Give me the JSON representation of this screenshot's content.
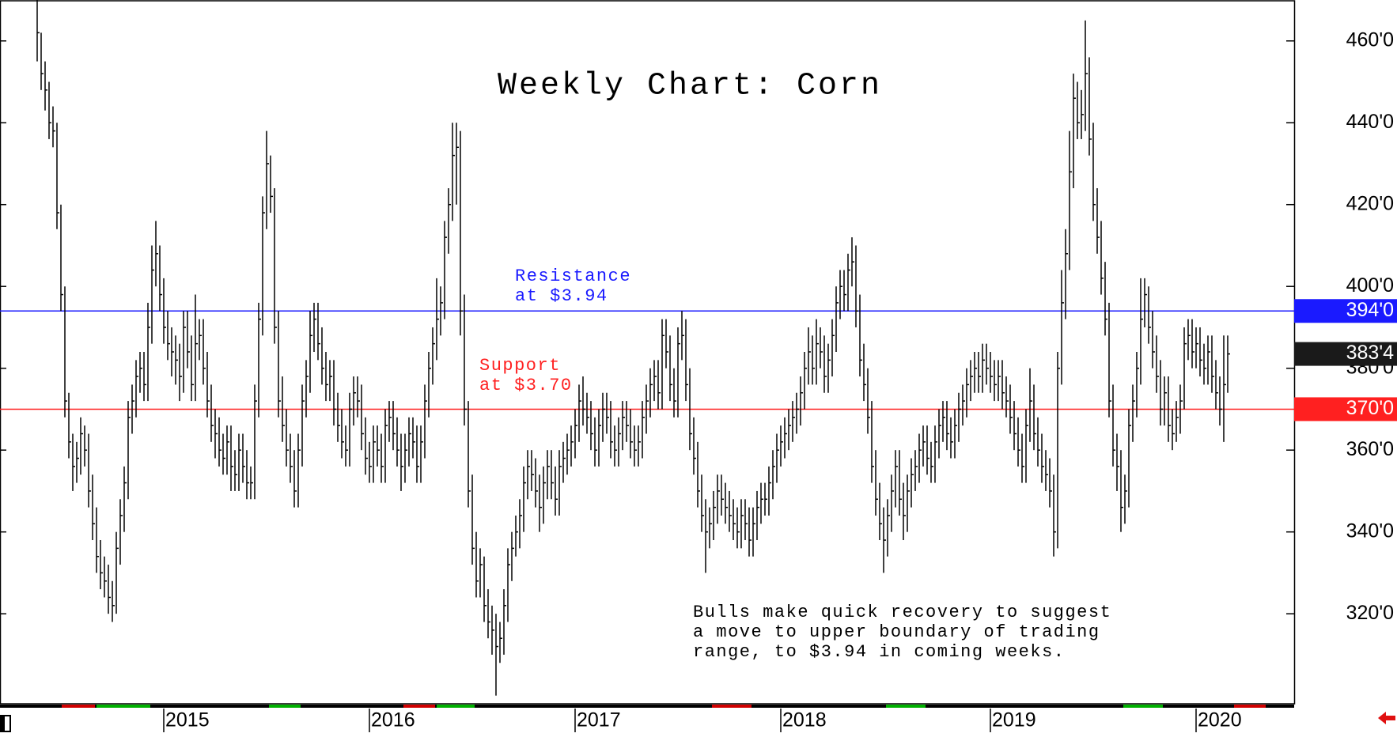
{
  "chart_data": {
    "type": "ohlc",
    "title": "Weekly Chart: Corn",
    "ylim": [
      298,
      470
    ],
    "yticks": [
      {
        "value": 320,
        "label": "320'0"
      },
      {
        "value": 340,
        "label": "340'0"
      },
      {
        "value": 360,
        "label": "360'0"
      },
      {
        "value": 380,
        "label": "380'0"
      },
      {
        "value": 400,
        "label": "400'0"
      },
      {
        "value": 420,
        "label": "420'0"
      },
      {
        "value": 440,
        "label": "440'0"
      },
      {
        "value": 460,
        "label": "460'0"
      }
    ],
    "xticks": [
      {
        "value": 32,
        "label": "2015"
      },
      {
        "value": 84,
        "label": "2016"
      },
      {
        "value": 136,
        "label": "2017"
      },
      {
        "value": 188,
        "label": "2018"
      },
      {
        "value": 241,
        "label": "2019"
      },
      {
        "value": 293,
        "label": "2020"
      }
    ],
    "levels": [
      {
        "value": 394,
        "label": "394'0",
        "color": "#1a1aff"
      },
      {
        "value": 370,
        "label": "370'0",
        "color": "#ff2020"
      }
    ],
    "last": {
      "value": 383.5,
      "label": "383'4",
      "color": "#1a1a1a"
    },
    "annotations": [
      {
        "lines": [
          "Resistance",
          "at $3.94"
        ],
        "color": "#1a1aff"
      },
      {
        "lines": [
          "Support",
          "at $3.70"
        ],
        "color": "#ff2020"
      },
      {
        "lines": [
          "Bulls make quick recovery to suggest",
          "a move to upper boundary of trading",
          "range, to $3.94 in coming weeks."
        ],
        "color": "#000000"
      }
    ],
    "color": "#000000",
    "high": [
      470,
      462,
      455,
      450,
      444,
      440,
      420,
      400,
      374,
      364,
      362,
      368,
      366,
      364,
      354,
      346,
      338,
      334,
      332,
      328,
      340,
      348,
      356,
      372,
      376,
      382,
      384,
      384,
      396,
      410,
      416,
      410,
      402,
      394,
      390,
      388,
      386,
      394,
      394,
      388,
      398,
      392,
      392,
      384,
      376,
      370,
      368,
      364,
      366,
      366,
      360,
      364,
      364,
      360,
      356,
      376,
      396,
      422,
      438,
      432,
      424,
      394,
      378,
      370,
      364,
      360,
      364,
      376,
      382,
      394,
      396,
      396,
      390,
      384,
      382,
      382,
      374,
      370,
      366,
      374,
      378,
      378,
      376,
      368,
      362,
      366,
      366,
      364,
      370,
      372,
      372,
      368,
      364,
      364,
      368,
      368,
      366,
      366,
      376,
      384,
      390,
      402,
      400,
      416,
      424,
      440,
      440,
      438,
      398,
      372,
      354,
      340,
      336,
      334,
      326,
      322,
      320,
      318,
      326,
      336,
      340,
      344,
      348,
      356,
      360,
      360,
      358,
      354,
      356,
      360,
      360,
      356,
      360,
      362,
      364,
      366,
      370,
      376,
      378,
      374,
      372,
      368,
      370,
      374,
      374,
      372,
      366,
      368,
      372,
      372,
      370,
      366,
      366,
      372,
      376,
      380,
      382,
      382,
      392,
      392,
      388,
      380,
      390,
      394,
      392,
      380,
      368,
      362,
      354,
      348,
      346,
      350,
      354,
      354,
      352,
      350,
      348,
      346,
      348,
      348,
      346,
      346,
      350,
      352,
      352,
      356,
      360,
      364,
      366,
      368,
      370,
      372,
      374,
      378,
      384,
      390,
      388,
      392,
      390,
      388,
      386,
      392,
      400,
      404,
      404,
      408,
      412,
      410,
      398,
      386,
      380,
      372,
      360,
      352,
      346,
      348,
      354,
      360,
      360,
      352,
      354,
      358,
      360,
      364,
      366,
      366,
      362,
      366,
      370,
      372,
      372,
      368,
      370,
      374,
      376,
      380,
      382,
      384,
      384,
      386,
      386,
      384,
      382,
      382,
      382,
      378,
      376,
      372,
      368,
      364,
      370,
      380,
      376,
      368,
      364,
      360,
      358,
      354,
      384,
      404,
      414,
      438,
      452,
      450,
      448,
      465,
      456,
      440,
      424,
      416,
      406,
      396,
      376,
      364,
      360,
      354,
      370,
      376,
      384,
      402,
      402,
      400,
      394,
      388,
      382,
      378,
      378,
      370,
      372,
      376,
      390,
      392,
      392,
      390,
      390,
      386,
      388,
      388,
      382,
      378,
      388,
      388
    ],
    "low": [
      455,
      448,
      443,
      436,
      434,
      414,
      394,
      368,
      358,
      350,
      352,
      354,
      356,
      346,
      338,
      330,
      326,
      324,
      320,
      318,
      320,
      332,
      340,
      348,
      364,
      368,
      374,
      372,
      372,
      386,
      400,
      394,
      386,
      382,
      378,
      376,
      372,
      374,
      380,
      372,
      372,
      382,
      376,
      368,
      362,
      358,
      356,
      354,
      354,
      350,
      350,
      350,
      352,
      348,
      348,
      348,
      368,
      388,
      414,
      418,
      386,
      368,
      362,
      356,
      352,
      346,
      346,
      356,
      368,
      374,
      384,
      382,
      376,
      372,
      372,
      366,
      362,
      358,
      356,
      356,
      366,
      368,
      360,
      354,
      352,
      352,
      356,
      352,
      352,
      362,
      360,
      356,
      350,
      352,
      356,
      358,
      352,
      352,
      358,
      368,
      376,
      382,
      388,
      392,
      408,
      416,
      420,
      388,
      366,
      346,
      332,
      324,
      324,
      318,
      314,
      310,
      300,
      308,
      310,
      318,
      328,
      334,
      336,
      340,
      348,
      350,
      346,
      340,
      342,
      348,
      348,
      344,
      344,
      352,
      354,
      356,
      358,
      362,
      366,
      364,
      360,
      356,
      356,
      362,
      364,
      358,
      356,
      356,
      360,
      362,
      358,
      356,
      356,
      358,
      364,
      368,
      372,
      370,
      370,
      380,
      372,
      368,
      368,
      382,
      372,
      360,
      354,
      346,
      340,
      330,
      336,
      338,
      342,
      344,
      342,
      340,
      338,
      336,
      336,
      338,
      334,
      334,
      338,
      342,
      344,
      344,
      348,
      352,
      356,
      358,
      360,
      362,
      364,
      366,
      370,
      376,
      376,
      376,
      380,
      374,
      374,
      378,
      384,
      392,
      394,
      394,
      400,
      390,
      378,
      372,
      364,
      352,
      344,
      338,
      330,
      334,
      340,
      346,
      344,
      338,
      340,
      346,
      350,
      352,
      356,
      354,
      352,
      352,
      358,
      362,
      360,
      358,
      358,
      362,
      366,
      368,
      372,
      374,
      374,
      374,
      376,
      374,
      372,
      372,
      370,
      368,
      364,
      360,
      356,
      352,
      352,
      362,
      360,
      356,
      352,
      350,
      346,
      334,
      336,
      376,
      392,
      404,
      424,
      436,
      436,
      438,
      432,
      416,
      408,
      398,
      388,
      368,
      356,
      350,
      340,
      342,
      346,
      362,
      368,
      376,
      390,
      386,
      380,
      374,
      366,
      366,
      362,
      360,
      362,
      364,
      370,
      382,
      380,
      380,
      378,
      376,
      376,
      374,
      370,
      366,
      362,
      374
    ],
    "close": [
      462,
      452,
      448,
      440,
      438,
      418,
      398,
      372,
      362,
      356,
      358,
      364,
      360,
      350,
      342,
      334,
      330,
      328,
      324,
      322,
      336,
      344,
      352,
      368,
      372,
      378,
      380,
      376,
      390,
      404,
      408,
      398,
      390,
      386,
      384,
      382,
      378,
      390,
      384,
      376,
      386,
      388,
      380,
      372,
      366,
      364,
      360,
      358,
      362,
      356,
      354,
      360,
      356,
      352,
      352,
      372,
      392,
      418,
      430,
      422,
      390,
      372,
      366,
      360,
      356,
      350,
      360,
      372,
      378,
      388,
      392,
      386,
      380,
      376,
      378,
      370,
      366,
      362,
      360,
      370,
      374,
      372,
      364,
      358,
      356,
      362,
      360,
      356,
      366,
      368,
      364,
      360,
      356,
      360,
      364,
      362,
      356,
      362,
      372,
      380,
      386,
      392,
      396,
      412,
      420,
      432,
      434,
      394,
      370,
      350,
      336,
      328,
      332,
      322,
      318,
      316,
      312,
      314,
      322,
      332,
      336,
      340,
      344,
      352,
      356,
      354,
      350,
      346,
      352,
      356,
      352,
      348,
      356,
      358,
      360,
      362,
      366,
      372,
      370,
      368,
      364,
      360,
      366,
      370,
      368,
      362,
      360,
      364,
      368,
      366,
      362,
      360,
      362,
      368,
      372,
      376,
      378,
      374,
      388,
      384,
      376,
      372,
      386,
      388,
      376,
      364,
      358,
      350,
      344,
      340,
      342,
      346,
      350,
      348,
      346,
      344,
      342,
      340,
      344,
      342,
      338,
      342,
      346,
      348,
      348,
      352,
      356,
      360,
      362,
      364,
      366,
      368,
      370,
      374,
      380,
      384,
      380,
      386,
      384,
      378,
      382,
      388,
      396,
      400,
      398,
      404,
      406,
      394,
      382,
      376,
      368,
      356,
      348,
      342,
      338,
      344,
      350,
      356,
      348,
      344,
      350,
      354,
      356,
      360,
      362,
      358,
      356,
      362,
      366,
      368,
      364,
      362,
      366,
      370,
      372,
      376,
      378,
      380,
      378,
      382,
      380,
      378,
      376,
      378,
      374,
      372,
      368,
      364,
      360,
      356,
      366,
      372,
      364,
      360,
      356,
      354,
      350,
      340,
      380,
      396,
      408,
      428,
      446,
      440,
      442,
      452,
      436,
      420,
      412,
      402,
      392,
      372,
      360,
      356,
      346,
      350,
      366,
      372,
      380,
      392,
      398,
      390,
      384,
      378,
      370,
      374,
      366,
      364,
      368,
      372,
      386,
      388,
      384,
      386,
      382,
      380,
      384,
      378,
      374,
      370,
      376,
      383.5
    ]
  }
}
